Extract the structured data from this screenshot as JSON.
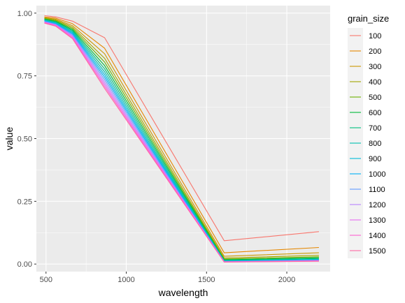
{
  "chart_data": {
    "type": "line",
    "title": "",
    "xlabel": "wavelength",
    "ylabel": "value",
    "xlim": [
      440,
      2270
    ],
    "ylim": [
      -0.03,
      1.03
    ],
    "x_ticks": [
      500,
      1000,
      1500,
      2000
    ],
    "x_tick_labels": [
      "500",
      "1000",
      "1500",
      "2000"
    ],
    "y_ticks": [
      0,
      0.25,
      0.5,
      0.75,
      1
    ],
    "y_tick_labels": [
      "0.00",
      "0.25",
      "0.50",
      "0.75",
      "1.00"
    ],
    "grid": true,
    "legend_position": "right",
    "legend_title": "grain_size",
    "x": [
      490,
      560,
      665,
      865,
      1610,
      2200
    ],
    "series": [
      {
        "name": "100",
        "color": "#F8766D",
        "values": [
          0.99,
          0.985,
          0.968,
          0.902,
          0.093,
          0.129
        ]
      },
      {
        "name": "200",
        "color": "#E58700",
        "values": [
          0.985,
          0.98,
          0.958,
          0.86,
          0.045,
          0.066
        ]
      },
      {
        "name": "300",
        "color": "#C99800",
        "values": [
          0.982,
          0.976,
          0.95,
          0.838,
          0.031,
          0.045
        ]
      },
      {
        "name": "400",
        "color": "#A3A500",
        "values": [
          0.98,
          0.973,
          0.944,
          0.82,
          0.024,
          0.035
        ]
      },
      {
        "name": "500",
        "color": "#6BB100",
        "values": [
          0.978,
          0.97,
          0.939,
          0.805,
          0.02,
          0.029
        ]
      },
      {
        "name": "600",
        "color": "#00BA38",
        "values": [
          0.976,
          0.967,
          0.934,
          0.791,
          0.017,
          0.025
        ]
      },
      {
        "name": "700",
        "color": "#00BF7D",
        "values": [
          0.974,
          0.965,
          0.93,
          0.778,
          0.015,
          0.022
        ]
      },
      {
        "name": "800",
        "color": "#00C0AF",
        "values": [
          0.972,
          0.962,
          0.926,
          0.766,
          0.013,
          0.019
        ]
      },
      {
        "name": "900",
        "color": "#00BCD8",
        "values": [
          0.97,
          0.96,
          0.922,
          0.755,
          0.012,
          0.017
        ]
      },
      {
        "name": "1000",
        "color": "#00B0F6",
        "values": [
          0.969,
          0.958,
          0.918,
          0.745,
          0.011,
          0.016
        ]
      },
      {
        "name": "1100",
        "color": "#619CFF",
        "values": [
          0.967,
          0.956,
          0.914,
          0.735,
          0.01,
          0.015
        ]
      },
      {
        "name": "1200",
        "color": "#B983FF",
        "values": [
          0.965,
          0.954,
          0.91,
          0.725,
          0.009,
          0.014
        ]
      },
      {
        "name": "1300",
        "color": "#E76BF3",
        "values": [
          0.963,
          0.952,
          0.906,
          0.716,
          0.009,
          0.013
        ]
      },
      {
        "name": "1400",
        "color": "#FD61D1",
        "values": [
          0.962,
          0.95,
          0.902,
          0.708,
          0.008,
          0.012
        ]
      },
      {
        "name": "1500",
        "color": "#FF67A4",
        "values": [
          0.96,
          0.948,
          0.898,
          0.7,
          0.008,
          0.011
        ]
      }
    ]
  }
}
